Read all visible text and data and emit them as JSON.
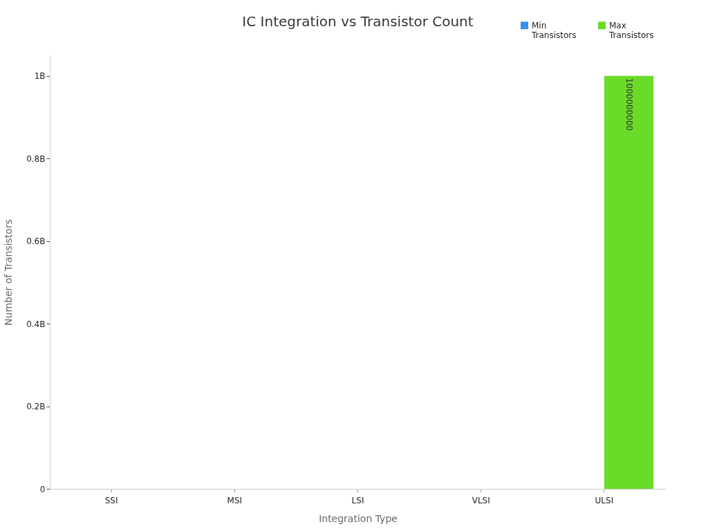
{
  "chart_data": {
    "type": "bar",
    "title": "IC Integration vs Transistor Count",
    "xlabel": "Integration Type",
    "ylabel": "Number of Transistors",
    "categories": [
      "SSI",
      "MSI",
      "LSI",
      "VLSI",
      "ULSI"
    ],
    "series": [
      {
        "name": "Min Transistors",
        "color": "#3391ee",
        "values": [
          0,
          0,
          0,
          0,
          0
        ],
        "value_labels": [
          null,
          null,
          null,
          null,
          null
        ]
      },
      {
        "name": "Max Transistors",
        "color": "#6adb29",
        "values": [
          0,
          0,
          0,
          0,
          1000000000
        ],
        "value_labels": [
          null,
          null,
          null,
          null,
          "1000000000"
        ]
      }
    ],
    "ylim": [
      0,
      1050000000
    ],
    "yticks": [
      0,
      {
        "value": 200000000,
        "label": "0.2B"
      },
      {
        "value": 400000000,
        "label": "0.4B"
      },
      {
        "value": 600000000,
        "label": "0.6B"
      },
      {
        "value": 800000000,
        "label": "0.8B"
      },
      {
        "value": 1000000000,
        "label": "1B"
      }
    ],
    "grid": false,
    "legend": "top right"
  }
}
